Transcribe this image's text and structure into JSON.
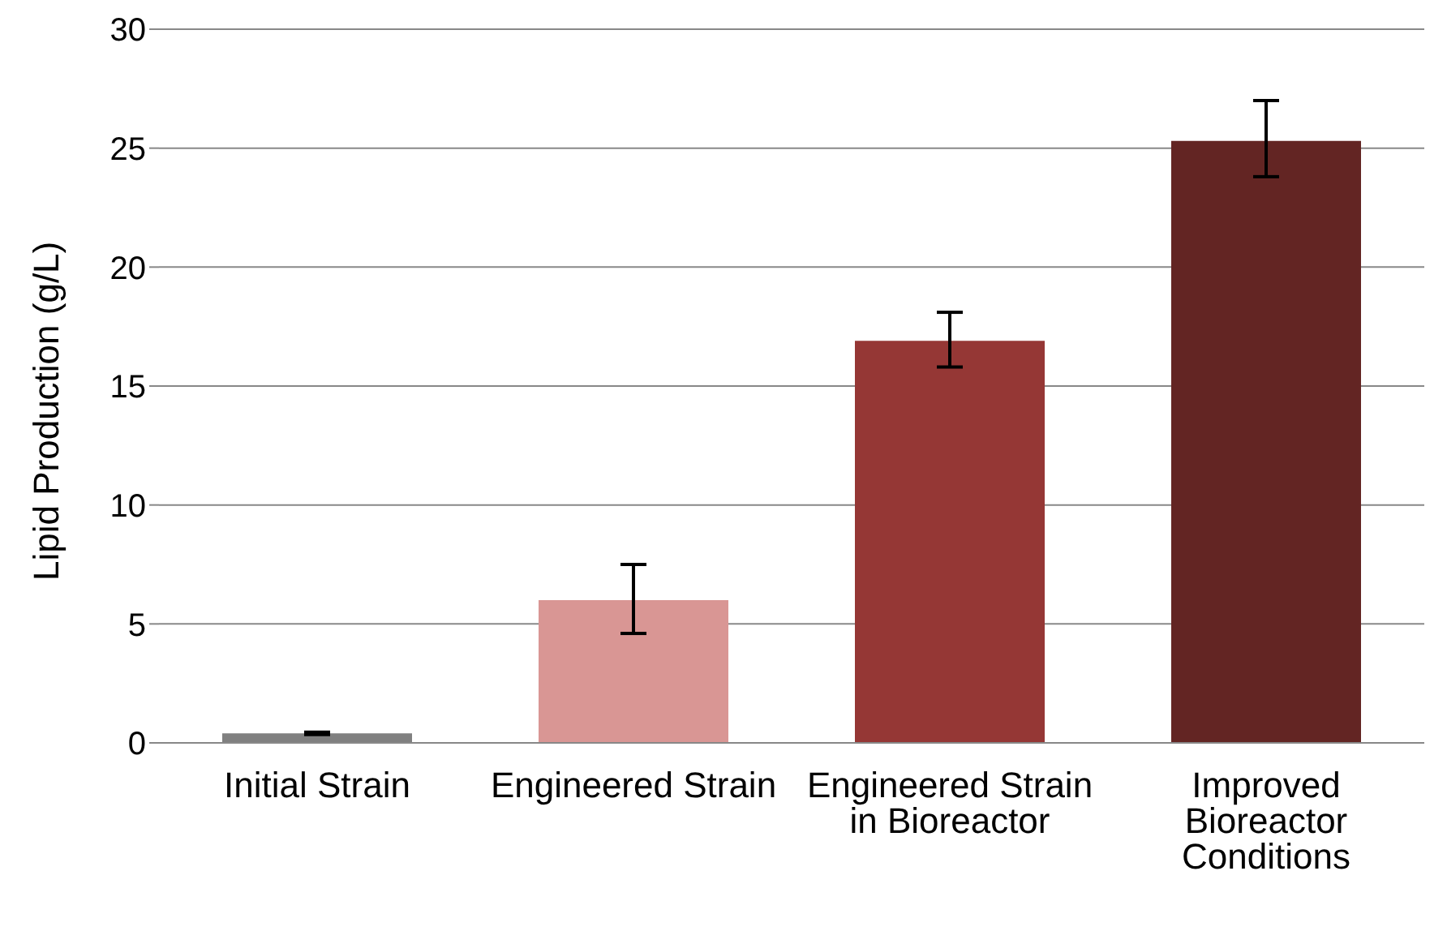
{
  "chart_data": {
    "type": "bar",
    "ylabel": "Lipid Production (g/L)",
    "categories": [
      "Initial Strain",
      "Engineered Strain",
      "Engineered Strain in Bioreactor",
      "Improved Bioreactor Conditions"
    ],
    "values": [
      0.4,
      6.0,
      16.9,
      25.3
    ],
    "colors": [
      "#808080",
      "#d99694",
      "#953735",
      "#632523"
    ],
    "errors": [
      [
        0.35,
        0.45
      ],
      [
        4.6,
        7.5
      ],
      [
        15.8,
        18.1
      ],
      [
        23.8,
        27.0
      ]
    ],
    "ylim": [
      0,
      30
    ],
    "yticks": [
      0,
      5,
      10,
      15,
      20,
      25,
      30
    ],
    "grid": "y",
    "legend": false
  }
}
